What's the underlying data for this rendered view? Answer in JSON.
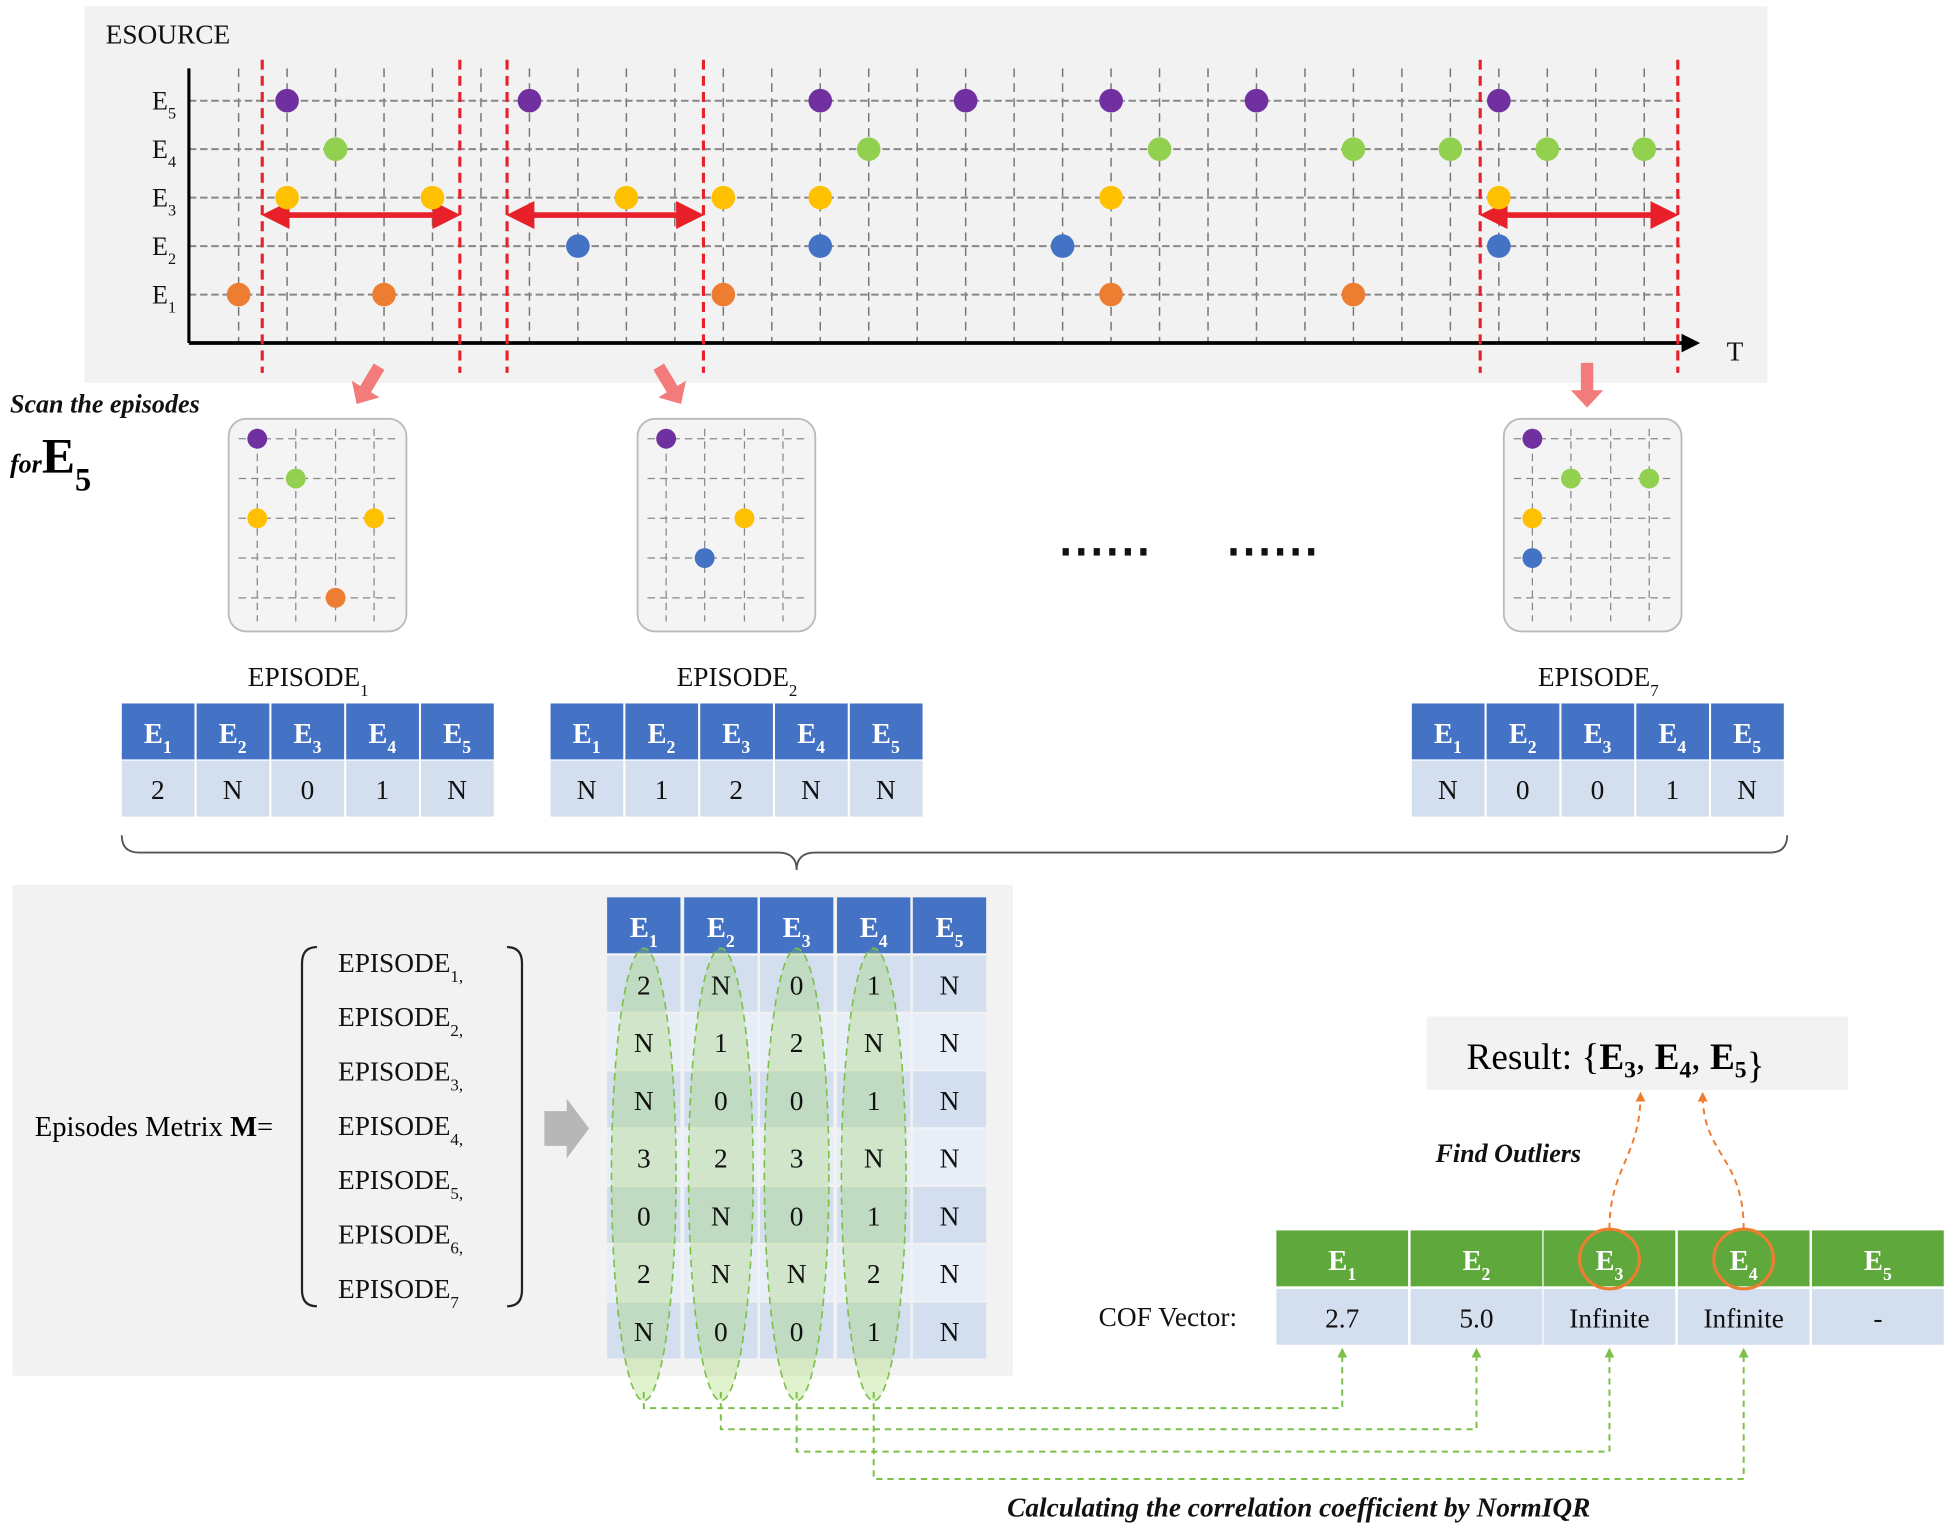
{
  "colors": {
    "E1": "#ed7d31",
    "E2": "#4472c4",
    "E3": "#ffc000",
    "E4": "#92d050",
    "E5": "#7030a0",
    "episode_header": "#4472c4",
    "cell": "#d3deef",
    "cell_alt": "#e8eef8",
    "cof_header": "#5fa83c",
    "window_line": "#e8202a",
    "pointer_arrow": "#f47b7b",
    "outlier_marker": "#ed7d31",
    "link_line": "#7cc04a"
  },
  "timeline": {
    "title": "ESOURCE",
    "axis_label": "T",
    "rows": [
      "E5",
      "E4",
      "E3",
      "E2",
      "E1"
    ],
    "events": {
      "E5": [
        1,
        6,
        12,
        15,
        18,
        21,
        26
      ],
      "E4": [
        2,
        13,
        19,
        23,
        25,
        27,
        29
      ],
      "E3": [
        1,
        4,
        8,
        10,
        12,
        18,
        26
      ],
      "E2": [
        7,
        12,
        17,
        26
      ],
      "E1": [
        0,
        3,
        10,
        18,
        23
      ]
    }
  },
  "scan": {
    "line1": "Scan the episodes",
    "line2_prefix": "for",
    "target": "E",
    "target_sub": "5"
  },
  "ellipsis": [
    "......",
    "......"
  ],
  "episodes": [
    {
      "label": "EPISODE",
      "sub": "1",
      "values": [
        "2",
        "N",
        "0",
        "1",
        "N"
      ],
      "mini": [
        [
          "E5",
          0
        ],
        [
          "E4",
          1
        ],
        [
          "E3",
          0
        ],
        [
          "E3",
          3
        ],
        [
          "E1",
          2
        ]
      ]
    },
    {
      "label": "EPISODE",
      "sub": "2",
      "values": [
        "N",
        "1",
        "2",
        "N",
        "N"
      ],
      "mini": [
        [
          "E5",
          0
        ],
        [
          "E3",
          2
        ],
        [
          "E2",
          1
        ]
      ]
    },
    {
      "label": "EPISODE",
      "sub": "7",
      "values": [
        "N",
        "0",
        "0",
        "1",
        "N"
      ],
      "mini": [
        [
          "E5",
          0
        ],
        [
          "E4",
          1
        ],
        [
          "E4",
          3
        ],
        [
          "E3",
          0
        ],
        [
          "E2",
          0
        ]
      ]
    }
  ],
  "columns": [
    "1",
    "2",
    "3",
    "4",
    "5"
  ],
  "matrix": {
    "label": "Episodes Metrix ",
    "label_bold": "M",
    "label_eq": "=",
    "rows_label": "EPISODE",
    "rows": [
      [
        "2",
        "N",
        "0",
        "1",
        "N"
      ],
      [
        "N",
        "1",
        "2",
        "N",
        "N"
      ],
      [
        "N",
        "0",
        "0",
        "1",
        "N"
      ],
      [
        "3",
        "2",
        "3",
        "N",
        "N"
      ],
      [
        "0",
        "N",
        "0",
        "1",
        "N"
      ],
      [
        "2",
        "N",
        "N",
        "2",
        "N"
      ],
      [
        "N",
        "0",
        "0",
        "1",
        "N"
      ]
    ]
  },
  "cof": {
    "label": "COF Vector:",
    "values": [
      "2.7",
      "5.0",
      "Infinite",
      "Infinite",
      "-"
    ],
    "outliers": [
      3,
      4
    ]
  },
  "find_outliers": "Find Outliers",
  "result": {
    "prefix": "Result: {",
    "items": [
      "3",
      "4",
      "5"
    ],
    "suffix": "}"
  },
  "footer": "Calculating the correlation coefficient by NormIQR"
}
